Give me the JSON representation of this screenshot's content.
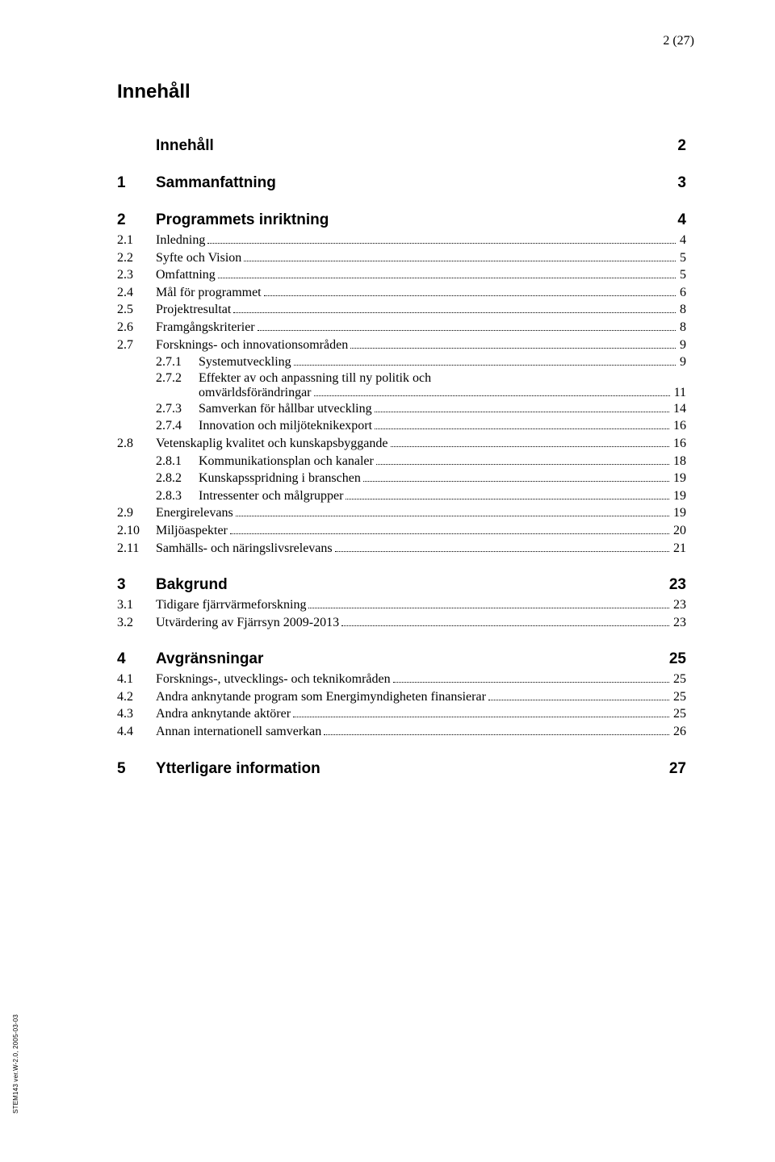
{
  "page_indicator": "2 (27)",
  "title": "Innehåll",
  "side_label": "STEM143 ver.W-2.0, 2005-03-03",
  "sections": [
    {
      "num": "",
      "label": "Innehåll",
      "page": "2",
      "level": 1,
      "children": []
    },
    {
      "num": "1",
      "label": "Sammanfattning",
      "page": "3",
      "level": 1,
      "children": []
    },
    {
      "num": "2",
      "label": "Programmets inriktning",
      "page": "4",
      "level": 1,
      "children": [
        {
          "num": "2.1",
          "label": "Inledning",
          "page": "4"
        },
        {
          "num": "2.2",
          "label": "Syfte och Vision",
          "page": "5"
        },
        {
          "num": "2.3",
          "label": "Omfattning",
          "page": "5"
        },
        {
          "num": "2.4",
          "label": "Mål för programmet",
          "page": "6"
        },
        {
          "num": "2.5",
          "label": "Projektresultat",
          "page": "8"
        },
        {
          "num": "2.6",
          "label": "Framgångskriterier",
          "page": "8"
        },
        {
          "num": "2.7",
          "label": "Forsknings- och innovationsområden",
          "page": "9",
          "children": [
            {
              "num": "2.7.1",
              "label": "Systemutveckling",
              "page": "9"
            },
            {
              "num": "2.7.2",
              "label_line1": "Effekter av och anpassning till ny politik och",
              "label_line2": "omvärldsförändringar",
              "page": "11",
              "multiline": true
            },
            {
              "num": "2.7.3",
              "label": "Samverkan för hållbar utveckling",
              "page": "14"
            },
            {
              "num": "2.7.4",
              "label": "Innovation och miljöteknikexport",
              "page": "16"
            }
          ]
        },
        {
          "num": "2.8",
          "label": "Vetenskaplig kvalitet och kunskapsbyggande",
          "page": "16",
          "children": [
            {
              "num": "2.8.1",
              "label": "Kommunikationsplan och kanaler",
              "page": "18"
            },
            {
              "num": "2.8.2",
              "label": "Kunskapsspridning i branschen",
              "page": "19"
            },
            {
              "num": "2.8.3",
              "label": "Intressenter och målgrupper",
              "page": "19"
            }
          ]
        },
        {
          "num": "2.9",
          "label": "Energirelevans",
          "page": "19"
        },
        {
          "num": "2.10",
          "label": "Miljöaspekter",
          "page": "20"
        },
        {
          "num": "2.11",
          "label": "Samhälls- och näringslivsrelevans",
          "page": "21"
        }
      ]
    },
    {
      "num": "3",
      "label": "Bakgrund",
      "page": "23",
      "level": 1,
      "children": [
        {
          "num": "3.1",
          "label": "Tidigare fjärrvärmeforskning",
          "page": "23"
        },
        {
          "num": "3.2",
          "label": "Utvärdering av Fjärrsyn 2009-2013",
          "page": "23"
        }
      ]
    },
    {
      "num": "4",
      "label": "Avgränsningar",
      "page": "25",
      "level": 1,
      "children": [
        {
          "num": "4.1",
          "label": "Forsknings-, utvecklings- och teknikområden",
          "page": "25"
        },
        {
          "num": "4.2",
          "label": "Andra anknytande program som Energimyndigheten finansierar",
          "page": "25"
        },
        {
          "num": "4.3",
          "label": "Andra anknytande aktörer",
          "page": "25"
        },
        {
          "num": "4.4",
          "label": "Annan internationell samverkan",
          "page": "26"
        }
      ]
    },
    {
      "num": "5",
      "label": "Ytterligare information",
      "page": "27",
      "level": 1,
      "children": []
    }
  ]
}
